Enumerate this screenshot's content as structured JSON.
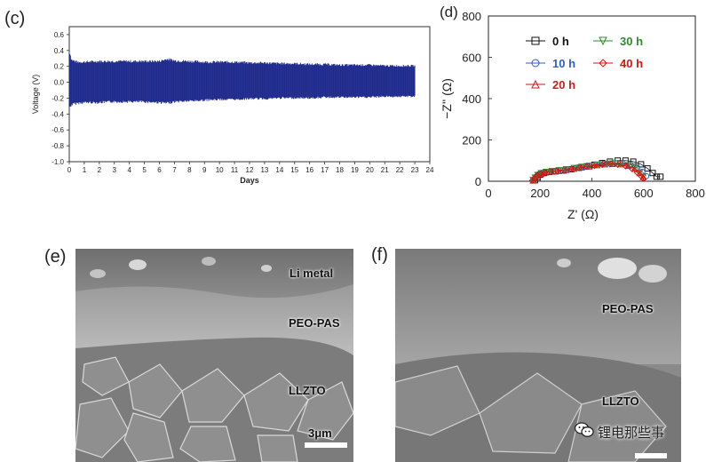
{
  "panels": {
    "c": "(c)",
    "d": "(d)",
    "e": "(e)",
    "f": "(f)"
  },
  "chart_data": [
    {
      "type": "line",
      "panel": "c",
      "xlabel": "Days",
      "ylabel": "Voltage (V)",
      "xlim": [
        0,
        24
      ],
      "ylim": [
        -1.0,
        0.7
      ],
      "x_ticks": [
        0,
        1,
        2,
        3,
        4,
        5,
        6,
        7,
        8,
        9,
        10,
        11,
        12,
        13,
        14,
        15,
        16,
        17,
        18,
        19,
        20,
        21,
        22,
        23,
        24
      ],
      "y_ticks": [
        "0.6",
        "0.4",
        "0.2",
        "0.0",
        "-0.2",
        "-0.4",
        "-0.6",
        "-0.8",
        "-1.0"
      ],
      "y_tick_values": [
        0.6,
        0.4,
        0.2,
        0.0,
        -0.2,
        -0.4,
        -0.6,
        -0.8,
        -1.0
      ],
      "envelope": {
        "x": [
          0,
          0.15,
          0.5,
          1,
          2,
          3,
          4,
          5,
          6,
          6.5,
          7,
          8,
          9,
          10,
          11,
          12,
          13,
          14,
          15,
          16,
          17,
          18,
          19,
          20,
          21,
          22,
          23
        ],
        "upper": [
          0.43,
          0.3,
          0.27,
          0.27,
          0.28,
          0.28,
          0.28,
          0.28,
          0.28,
          0.31,
          0.29,
          0.28,
          0.27,
          0.27,
          0.27,
          0.26,
          0.26,
          0.25,
          0.25,
          0.24,
          0.24,
          0.23,
          0.23,
          0.23,
          0.22,
          0.22,
          0.22
        ],
        "lower": [
          -0.35,
          -0.3,
          -0.28,
          -0.27,
          -0.27,
          -0.26,
          -0.26,
          -0.26,
          -0.27,
          -0.28,
          -0.26,
          -0.25,
          -0.24,
          -0.23,
          -0.23,
          -0.22,
          -0.22,
          -0.21,
          -0.21,
          -0.21,
          -0.2,
          -0.2,
          -0.2,
          -0.2,
          -0.19,
          -0.19,
          -0.19
        ]
      },
      "color": "#1f2a8c"
    },
    {
      "type": "scatter",
      "panel": "d",
      "xlabel": "Z' (Ω)",
      "ylabel": "−Z'' (Ω)",
      "xlim": [
        0,
        800
      ],
      "ylim": [
        0,
        800
      ],
      "x_ticks": [
        "0",
        "200",
        "400",
        "600",
        "800"
      ],
      "x_tick_values": [
        0,
        200,
        400,
        600,
        800
      ],
      "y_ticks": [
        "0",
        "200",
        "400",
        "600",
        "800"
      ],
      "y_tick_values": [
        0,
        200,
        400,
        600,
        800
      ],
      "legend_position": "top",
      "series": [
        {
          "name": "0 h",
          "color": "#111111",
          "marker": "square",
          "x": [
            180,
            190,
            200,
            215,
            235,
            260,
            290,
            320,
            350,
            380,
            410,
            440,
            470,
            500,
            530,
            560,
            590,
            615,
            635,
            650,
            665
          ],
          "y": [
            5,
            20,
            32,
            40,
            45,
            48,
            52,
            58,
            65,
            72,
            80,
            88,
            95,
            100,
            100,
            95,
            82,
            62,
            40,
            22,
            22
          ]
        },
        {
          "name": "10 h",
          "color": "#2f5fc8",
          "marker": "circle",
          "x": [
            175,
            182,
            192,
            205,
            225,
            250,
            280,
            310,
            340,
            370,
            400,
            430,
            460,
            490,
            520,
            550,
            575,
            595,
            610
          ],
          "y": [
            5,
            18,
            30,
            38,
            44,
            48,
            52,
            58,
            64,
            70,
            76,
            82,
            86,
            88,
            86,
            80,
            66,
            45,
            25
          ]
        },
        {
          "name": "20 h",
          "color": "#c81f1f",
          "marker": "triangle-up",
          "x": [
            172,
            180,
            190,
            203,
            222,
            245,
            272,
            300,
            330,
            360,
            390,
            420,
            450,
            480,
            510,
            540,
            565,
            585,
            598
          ],
          "y": [
            4,
            16,
            28,
            37,
            43,
            47,
            50,
            55,
            61,
            67,
            72,
            78,
            82,
            84,
            82,
            75,
            60,
            40,
            20
          ]
        },
        {
          "name": "30 h",
          "color": "#2e8b2e",
          "marker": "triangle-down",
          "x": [
            172,
            180,
            190,
            203,
            222,
            245,
            272,
            300,
            330,
            360,
            390,
            420,
            450,
            480,
            510,
            540,
            565,
            585,
            598
          ],
          "y": [
            6,
            18,
            30,
            39,
            45,
            49,
            53,
            58,
            64,
            70,
            75,
            80,
            84,
            86,
            84,
            77,
            62,
            42,
            22
          ]
        },
        {
          "name": "40 h",
          "color": "#e01010",
          "marker": "diamond",
          "x": [
            170,
            178,
            188,
            200,
            218,
            240,
            265,
            292,
            320,
            350,
            380,
            410,
            440,
            470,
            500,
            530,
            555,
            575,
            590,
            600
          ],
          "y": [
            4,
            15,
            27,
            36,
            42,
            46,
            49,
            53,
            58,
            64,
            70,
            75,
            80,
            82,
            80,
            73,
            60,
            42,
            25,
            12
          ]
        }
      ]
    }
  ],
  "sem_e": {
    "labels": {
      "li_metal": "Li metal",
      "peo_pas": "PEO-PAS",
      "llzto": "LLZTO"
    },
    "scale_bar": "3μm"
  },
  "sem_f": {
    "labels": {
      "peo_pas": "PEO-PAS",
      "llzto": "LLZTO"
    }
  },
  "watermark": {
    "text": "锂电那些事",
    "icon": "wechat-icon"
  }
}
